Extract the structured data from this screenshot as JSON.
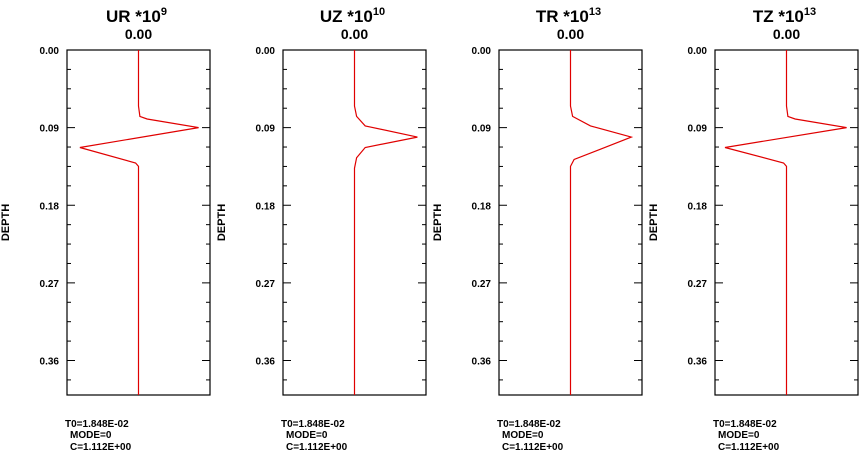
{
  "chart_data": [
    {
      "type": "line",
      "title": "UR *10",
      "title_exponent": "9",
      "subtitle": "0.00",
      "ylabel": "DEPTH",
      "y_ticks": [
        "0.00",
        "0.09",
        "0.18",
        "0.27",
        "0.36"
      ],
      "y_tick_values": [
        0,
        0.09,
        0.18,
        0.27,
        0.36
      ],
      "ylim": [
        0,
        0.4
      ],
      "y_inverted": true,
      "xlim": [
        -1,
        1
      ],
      "line_color": "#e00000",
      "series": [
        {
          "x": [
            0,
            0,
            0.02,
            0.12,
            0.84,
            -0.82,
            -0.04,
            0,
            0,
            0
          ],
          "y": [
            0,
            0.065,
            0.077,
            0.08,
            0.09,
            0.113,
            0.131,
            0.135,
            0.2,
            0.4
          ]
        }
      ],
      "footer": {
        "t0": "T0=1.848E-02",
        "mode": "MODE=0",
        "c": "C=1.112E+00"
      }
    },
    {
      "type": "line",
      "title": "UZ *10",
      "title_exponent": "10",
      "subtitle": "0.00",
      "ylabel": "DEPTH",
      "y_ticks": [
        "0.00",
        "0.09",
        "0.18",
        "0.27",
        "0.36"
      ],
      "y_tick_values": [
        0,
        0.09,
        0.18,
        0.27,
        0.36
      ],
      "ylim": [
        0,
        0.4
      ],
      "y_inverted": true,
      "xlim": [
        -1,
        1
      ],
      "line_color": "#e00000",
      "series": [
        {
          "x": [
            0,
            0,
            0.03,
            0.15,
            0.88,
            0.15,
            0.03,
            0,
            0
          ],
          "y": [
            0,
            0.065,
            0.077,
            0.088,
            0.101,
            0.113,
            0.125,
            0.137,
            0.4
          ]
        }
      ],
      "footer": {
        "t0": "T0=1.848E-02",
        "mode": "MODE=0",
        "c": "C=1.112E+00"
      }
    },
    {
      "type": "line",
      "title": "TR *10",
      "title_exponent": "13",
      "subtitle": "0.00",
      "ylabel": "DEPTH",
      "y_ticks": [
        "0.00",
        "0.09",
        "0.18",
        "0.27",
        "0.36"
      ],
      "y_tick_values": [
        0,
        0.09,
        0.18,
        0.27,
        0.36
      ],
      "ylim": [
        0,
        0.4
      ],
      "y_inverted": true,
      "xlim": [
        -1,
        1
      ],
      "line_color": "#e00000",
      "series": [
        {
          "x": [
            0,
            0,
            0.03,
            0.28,
            0.85,
            0.42,
            0.05,
            0,
            0
          ],
          "y": [
            0,
            0.065,
            0.077,
            0.088,
            0.101,
            0.115,
            0.127,
            0.135,
            0.4
          ]
        }
      ],
      "footer": {
        "t0": "T0=1.848E-02",
        "mode": "MODE=0",
        "c": "C=1.112E+00"
      }
    },
    {
      "type": "line",
      "title": "TZ *10",
      "title_exponent": "13",
      "subtitle": "0.00",
      "ylabel": "DEPTH",
      "y_ticks": [
        "0.00",
        "0.09",
        "0.18",
        "0.27",
        "0.36"
      ],
      "y_tick_values": [
        0,
        0.09,
        0.18,
        0.27,
        0.36
      ],
      "ylim": [
        0,
        0.4
      ],
      "y_inverted": true,
      "xlim": [
        -1,
        1
      ],
      "line_color": "#e00000",
      "series": [
        {
          "x": [
            0,
            0,
            0.02,
            0.12,
            0.84,
            -0.86,
            -0.04,
            0,
            0,
            0
          ],
          "y": [
            0,
            0.065,
            0.077,
            0.08,
            0.09,
            0.113,
            0.131,
            0.135,
            0.2,
            0.4
          ]
        }
      ],
      "footer": {
        "t0": "T0=1.848E-02",
        "mode": "MODE=0",
        "c": "C=1.112E+00"
      }
    }
  ]
}
